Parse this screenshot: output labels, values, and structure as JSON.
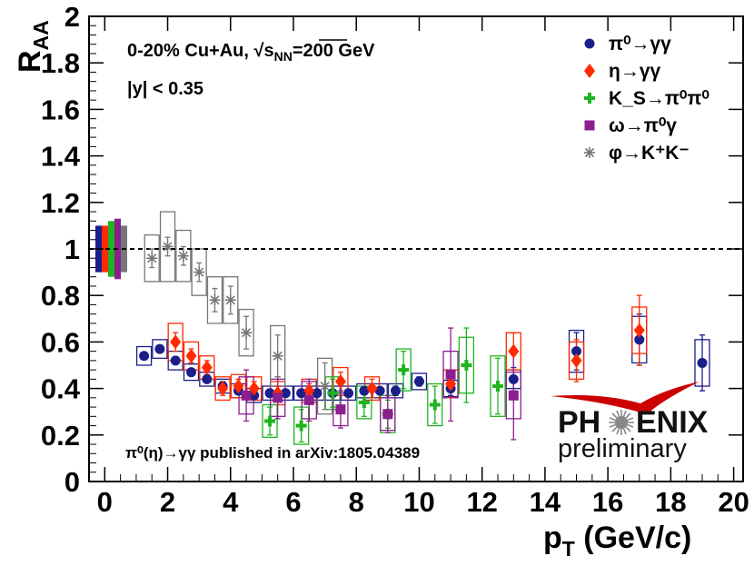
{
  "chart_data": {
    "type": "scatter",
    "title": "",
    "xlabel": "p_T (GeV/c)",
    "ylabel": "R_AA",
    "xlim": [
      -0.5,
      20.3
    ],
    "ylim": [
      0,
      2
    ],
    "x_ticks": [
      0,
      2,
      4,
      6,
      8,
      10,
      12,
      14,
      16,
      18,
      20
    ],
    "y_ticks": [
      0,
      0.2,
      0.4,
      0.6,
      0.8,
      1,
      1.2,
      1.4,
      1.6,
      1.8,
      2
    ],
    "y_tick_labels": [
      "0",
      "0.2",
      "0.4",
      "0.6",
      "0.8",
      "1",
      "1.2",
      "1.4",
      "1.6",
      "1.8",
      "2"
    ],
    "reference_line": 1.0,
    "annotations": {
      "system": "0-20% Cu+Au, ",
      "energy_sym": "√s",
      "energy_sub": "NN",
      "energy_val": "=200 GeV",
      "rapidity": "|y| < 0.35",
      "note": "π⁰(η)→γγ published in arXiv:1805.04389"
    },
    "logo": {
      "text_left": "PH",
      "text_right": "ENIX",
      "sub": "preliminary"
    },
    "norm_boxes": [
      {
        "color": "#1b1f8a",
        "low": 0.9,
        "high": 1.1
      },
      {
        "color": "#ff2a00",
        "low": 0.9,
        "high": 1.1
      },
      {
        "color": "#1fb31f",
        "low": 0.88,
        "high": 1.12
      },
      {
        "color": "#8b1f8f",
        "low": 0.87,
        "high": 1.13
      },
      {
        "color": "#777777",
        "low": 0.9,
        "high": 1.1
      }
    ],
    "series": [
      {
        "name": "π⁰→γγ",
        "color": "#1b1f8a",
        "marker": "circle",
        "points": [
          {
            "x": 1.25,
            "y": 0.54,
            "err": 0.01,
            "sys": 0.04
          },
          {
            "x": 1.75,
            "y": 0.57,
            "err": 0.01,
            "sys": 0.04
          },
          {
            "x": 2.25,
            "y": 0.52,
            "err": 0.01,
            "sys": 0.04
          },
          {
            "x": 2.75,
            "y": 0.47,
            "err": 0.01,
            "sys": 0.035
          },
          {
            "x": 3.25,
            "y": 0.44,
            "err": 0.01,
            "sys": 0.03
          },
          {
            "x": 3.75,
            "y": 0.41,
            "err": 0.01,
            "sys": 0.03
          },
          {
            "x": 4.25,
            "y": 0.39,
            "err": 0.01,
            "sys": 0.03
          },
          {
            "x": 4.75,
            "y": 0.37,
            "err": 0.01,
            "sys": 0.03
          },
          {
            "x": 5.25,
            "y": 0.38,
            "err": 0.01,
            "sys": 0.03
          },
          {
            "x": 5.75,
            "y": 0.38,
            "err": 0.01,
            "sys": 0.03
          },
          {
            "x": 6.25,
            "y": 0.38,
            "err": 0.01,
            "sys": 0.03
          },
          {
            "x": 6.75,
            "y": 0.38,
            "err": 0.01,
            "sys": 0.03
          },
          {
            "x": 7.25,
            "y": 0.38,
            "err": 0.01,
            "sys": 0.03
          },
          {
            "x": 7.75,
            "y": 0.38,
            "err": 0.015,
            "sys": 0.03
          },
          {
            "x": 8.25,
            "y": 0.39,
            "err": 0.015,
            "sys": 0.03
          },
          {
            "x": 8.75,
            "y": 0.39,
            "err": 0.015,
            "sys": 0.03
          },
          {
            "x": 9.25,
            "y": 0.39,
            "err": 0.02,
            "sys": 0.03
          },
          {
            "x": 10.0,
            "y": 0.43,
            "err": 0.02,
            "sys": 0.035
          },
          {
            "x": 11.0,
            "y": 0.4,
            "err": 0.03,
            "sys": 0.035
          },
          {
            "x": 13.0,
            "y": 0.44,
            "err": 0.05,
            "sys": 0.04
          },
          {
            "x": 15.0,
            "y": 0.56,
            "err": 0.08,
            "sys": 0.09
          },
          {
            "x": 17.0,
            "y": 0.61,
            "err": 0.11,
            "sys": 0.1
          },
          {
            "x": 19.0,
            "y": 0.51,
            "err": 0.12,
            "sys": 0.1
          }
        ]
      },
      {
        "name": "η→γγ",
        "color": "#ff2a00",
        "marker": "diamond",
        "points": [
          {
            "x": 2.25,
            "y": 0.6,
            "err": 0.04,
            "sys": 0.08
          },
          {
            "x": 2.75,
            "y": 0.54,
            "err": 0.03,
            "sys": 0.06
          },
          {
            "x": 3.25,
            "y": 0.49,
            "err": 0.03,
            "sys": 0.05
          },
          {
            "x": 3.75,
            "y": 0.4,
            "err": 0.03,
            "sys": 0.05
          },
          {
            "x": 4.25,
            "y": 0.41,
            "err": 0.03,
            "sys": 0.05
          },
          {
            "x": 4.75,
            "y": 0.4,
            "err": 0.03,
            "sys": 0.05
          },
          {
            "x": 5.5,
            "y": 0.38,
            "err": 0.03,
            "sys": 0.05
          },
          {
            "x": 6.5,
            "y": 0.39,
            "err": 0.03,
            "sys": 0.05
          },
          {
            "x": 7.5,
            "y": 0.43,
            "err": 0.04,
            "sys": 0.06
          },
          {
            "x": 8.5,
            "y": 0.4,
            "err": 0.04,
            "sys": 0.05
          },
          {
            "x": 11.0,
            "y": 0.42,
            "err": 0.06,
            "sys": 0.06
          },
          {
            "x": 13.0,
            "y": 0.56,
            "err": 0.08,
            "sys": 0.08
          },
          {
            "x": 15.0,
            "y": 0.52,
            "err": 0.09,
            "sys": 0.08
          },
          {
            "x": 17.0,
            "y": 0.65,
            "err": 0.15,
            "sys": 0.1
          }
        ]
      },
      {
        "name": "K_S→π⁰π⁰",
        "color": "#1fb31f",
        "marker": "cross",
        "points": [
          {
            "x": 5.25,
            "y": 0.26,
            "err": 0.06,
            "sys": 0.07
          },
          {
            "x": 6.25,
            "y": 0.24,
            "err": 0.07,
            "sys": 0.08
          },
          {
            "x": 7.25,
            "y": 0.38,
            "err": 0.06,
            "sys": 0.07
          },
          {
            "x": 8.25,
            "y": 0.34,
            "err": 0.06,
            "sys": 0.07
          },
          {
            "x": 9.0,
            "y": 0.29,
            "err": 0.06,
            "sys": 0.08
          },
          {
            "x": 9.5,
            "y": 0.48,
            "err": 0.08,
            "sys": 0.09
          },
          {
            "x": 10.5,
            "y": 0.33,
            "err": 0.08,
            "sys": 0.09
          },
          {
            "x": 11.5,
            "y": 0.5,
            "err": 0.16,
            "sys": 0.12
          },
          {
            "x": 12.5,
            "y": 0.41,
            "err": 0.12,
            "sys": 0.13
          }
        ]
      },
      {
        "name": "ω→π⁰γ",
        "color": "#8b1f8f",
        "marker": "square",
        "points": [
          {
            "x": 4.5,
            "y": 0.37,
            "err": 0.11,
            "sys": 0.08
          },
          {
            "x": 5.5,
            "y": 0.36,
            "err": 0.09,
            "sys": 0.08
          },
          {
            "x": 6.5,
            "y": 0.35,
            "err": 0.09,
            "sys": 0.08
          },
          {
            "x": 7.5,
            "y": 0.31,
            "err": 0.08,
            "sys": 0.07
          },
          {
            "x": 9.0,
            "y": 0.29,
            "err": 0.08,
            "sys": 0.07
          },
          {
            "x": 11.0,
            "y": 0.46,
            "err": 0.2,
            "sys": 0.1
          },
          {
            "x": 13.0,
            "y": 0.37,
            "err": 0.19,
            "sys": 0.1
          }
        ]
      },
      {
        "name": "φ→K⁺K⁻",
        "color": "#777777",
        "marker": "star",
        "points": [
          {
            "x": 1.5,
            "y": 0.96,
            "err": 0.04,
            "sys": 0.1
          },
          {
            "x": 2.0,
            "y": 1.01,
            "err": 0.04,
            "sys": 0.15
          },
          {
            "x": 2.5,
            "y": 0.97,
            "err": 0.04,
            "sys": 0.11
          },
          {
            "x": 3.0,
            "y": 0.9,
            "err": 0.04,
            "sys": 0.1
          },
          {
            "x": 3.5,
            "y": 0.78,
            "err": 0.05,
            "sys": 0.1
          },
          {
            "x": 4.0,
            "y": 0.78,
            "err": 0.06,
            "sys": 0.1
          },
          {
            "x": 4.5,
            "y": 0.64,
            "err": 0.07,
            "sys": 0.1
          },
          {
            "x": 5.5,
            "y": 0.54,
            "err": 0.09,
            "sys": 0.13
          },
          {
            "x": 7.0,
            "y": 0.41,
            "err": 0.1,
            "sys": 0.12
          }
        ]
      }
    ]
  }
}
